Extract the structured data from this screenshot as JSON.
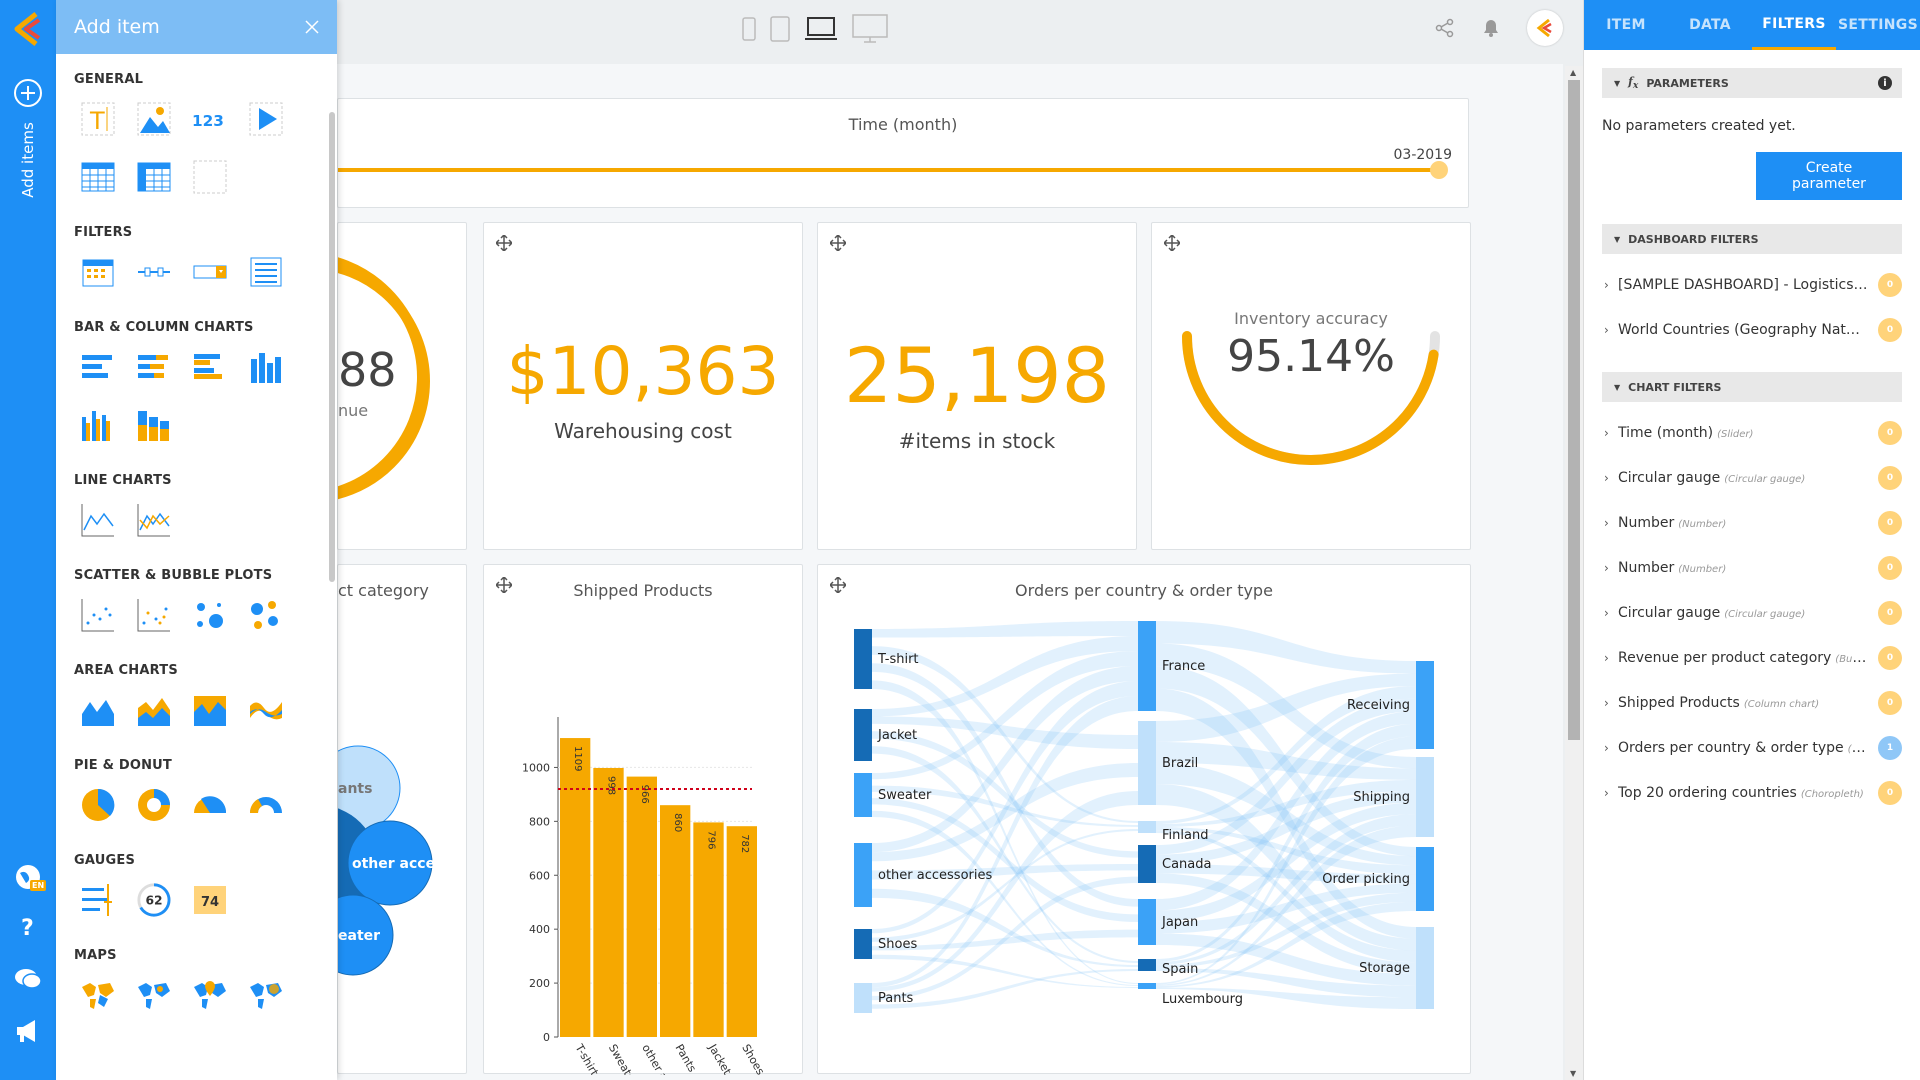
{
  "panel": {
    "title": "Add item",
    "sections": [
      "GENERAL",
      "FILTERS",
      "BAR & COLUMN CHARTS",
      "LINE CHARTS",
      "SCATTER & BUBBLE PLOTS",
      "AREA CHARTS",
      "PIE & DONUT",
      "GAUGES",
      "MAPS"
    ],
    "number_icon_text": "123",
    "gauge_icon_values": [
      "62",
      "74"
    ]
  },
  "rail": {
    "add_items_label": "Add items",
    "lang": "EN"
  },
  "time_slider": {
    "title": "Time (month)",
    "value": "03-2019"
  },
  "cards": {
    "revenue_partial": {
      "value": "88",
      "label": "nue"
    },
    "warehousing": {
      "value": "$10,363",
      "label": "Warehousing cost"
    },
    "stock": {
      "value": "25,198",
      "label": "#items in stock"
    },
    "inventory": {
      "label": "Inventory accuracy",
      "value": "95.14%",
      "fraction": 0.9514
    },
    "category_partial": {
      "title": "ct category",
      "bubbles": [
        "ants",
        "other acce",
        "eater"
      ]
    },
    "shipped": {
      "title": "Shipped Products"
    },
    "orders": {
      "title": "Orders per country & order type"
    }
  },
  "chart_data": [
    {
      "type": "bar",
      "title": "Shipped Products",
      "categories": [
        "T-shirt",
        "Sweater",
        "other acce...",
        "Pants",
        "Jacket",
        "Shoes"
      ],
      "values": [
        1109,
        998,
        966,
        860,
        796,
        782
      ],
      "ylim": [
        0,
        1150
      ],
      "yticks": [
        0,
        200,
        400,
        600,
        800,
        1000
      ],
      "reference_line": 920,
      "color": "#f6a800"
    },
    {
      "type": "sankey",
      "title": "Orders per country & order type",
      "products": [
        "T-shirt",
        "Jacket",
        "Sweater",
        "other accessories",
        "Shoes",
        "Pants"
      ],
      "countries": [
        "France",
        "Brazil",
        "Finland",
        "Canada",
        "Japan",
        "Spain",
        "Luxembourg"
      ],
      "order_types": [
        "Receiving",
        "Shipping",
        "Order picking",
        "Storage"
      ]
    }
  ],
  "right_panel": {
    "tabs": [
      "ITEM",
      "DATA",
      "FILTERS",
      "SETTINGS"
    ],
    "parameters_title": "PARAMETERS",
    "no_params": "No parameters created yet.",
    "create_button": "Create parameter",
    "dashboard_filters_title": "DASHBOARD FILTERS",
    "dashboard_filters": [
      {
        "label": "[SAMPLE DASHBOARD] - Logistics ...",
        "count": "0"
      },
      {
        "label": "World Countries (Geography Natur...",
        "count": "0"
      }
    ],
    "chart_filters_title": "CHART FILTERS",
    "chart_filters": [
      {
        "label": "Time (month)",
        "sub": "(Slider)",
        "count": "0"
      },
      {
        "label": "Circular gauge",
        "sub": "(Circular gauge)",
        "count": "0"
      },
      {
        "label": "Number",
        "sub": "(Number)",
        "count": "0"
      },
      {
        "label": "Number",
        "sub": "(Number)",
        "count": "0"
      },
      {
        "label": "Circular gauge",
        "sub": "(Circular gauge)",
        "count": "0"
      },
      {
        "label": "Revenue per product category",
        "sub": "(Bub...",
        "count": "0"
      },
      {
        "label": "Shipped Products",
        "sub": "(Column chart)",
        "count": "0"
      },
      {
        "label": "Orders per country & order type",
        "sub": "(All...",
        "count": "1"
      },
      {
        "label": "Top 20 ordering countries",
        "sub": "(Choropleth)",
        "count": "0"
      }
    ]
  },
  "colors": {
    "brand_blue": "#1e8ff5",
    "accent_orange": "#f6a800"
  }
}
